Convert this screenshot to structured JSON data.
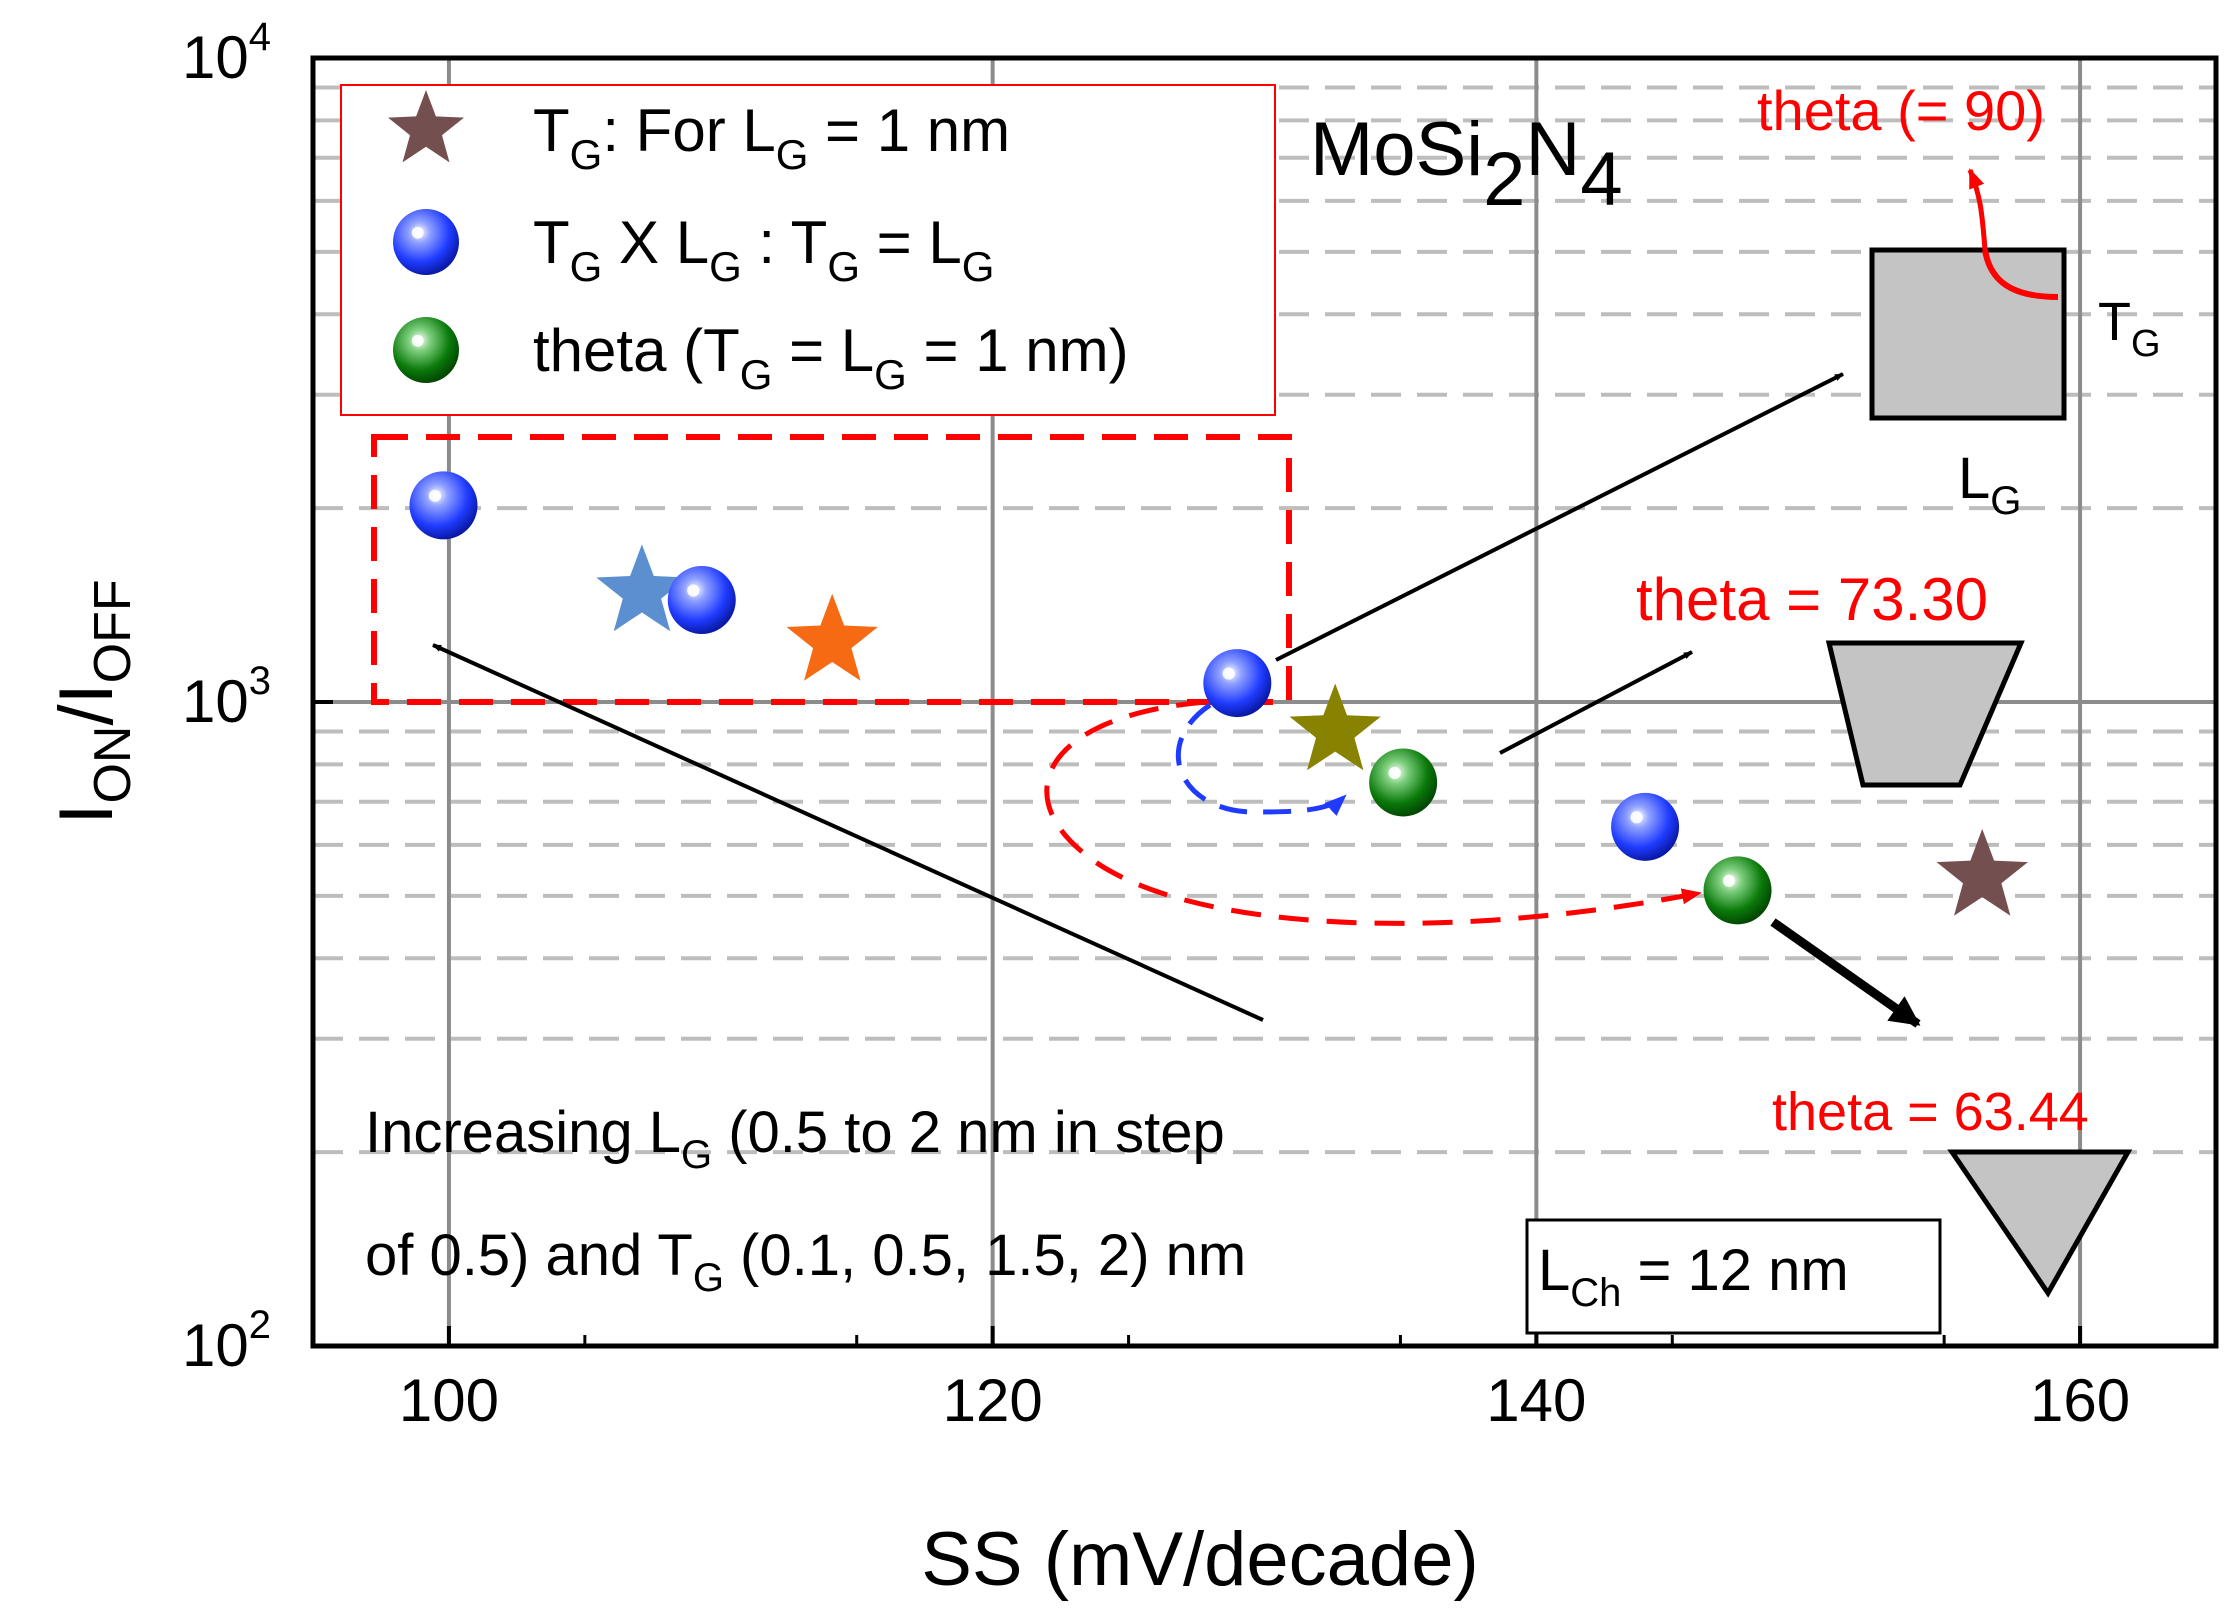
{
  "chart_data": {
    "type": "scatter",
    "xlabel": "SS (mV/decade)",
    "ylabel": {
      "base": "I",
      "sub1": "ON",
      "mid": "/I",
      "sub2": "OFF"
    },
    "xlim": [
      95,
      165
    ],
    "ylim": [
      100,
      10000
    ],
    "y_scale": "log",
    "x_ticks": [
      100,
      120,
      140,
      160
    ],
    "y_ticks": [
      {
        "value": 100,
        "base": "10",
        "exp": "2"
      },
      {
        "value": 1000,
        "base": "10",
        "exp": "3"
      },
      {
        "value": 10000,
        "base": "10",
        "exp": "4"
      }
    ],
    "grid": "major solid, minor dashed",
    "legend": {
      "position": "top-left",
      "entries": [
        {
          "marker": "star",
          "color": "#744f4f",
          "parts": [
            [
              "T",
              ""
            ],
            [
              "G",
              "sub"
            ],
            [
              ": For L",
              ""
            ],
            [
              "G",
              "sub"
            ],
            [
              " = 1 nm",
              ""
            ]
          ]
        },
        {
          "marker": "sphere",
          "color": "#1f3bff",
          "parts": [
            [
              "T",
              ""
            ],
            [
              "G",
              "sub"
            ],
            [
              " X L",
              ""
            ],
            [
              "G",
              "sub"
            ],
            [
              " : T",
              ""
            ],
            [
              "G",
              "sub"
            ],
            [
              " = L",
              ""
            ],
            [
              "G",
              "sub"
            ]
          ]
        },
        {
          "marker": "sphere",
          "color": "#0a7a0a",
          "parts": [
            [
              "theta (T",
              ""
            ],
            [
              "G",
              "sub"
            ],
            [
              " = L",
              ""
            ],
            [
              "G",
              "sub"
            ],
            [
              " = 1 nm)",
              ""
            ]
          ]
        }
      ]
    },
    "series": [
      {
        "marker": "star",
        "points": [
          {
            "x": 107.1,
            "y": 1480,
            "color": "#5b8fd0"
          },
          {
            "x": 114.1,
            "y": 1240,
            "color": "#f56a12"
          },
          {
            "x": 132.6,
            "y": 900,
            "color": "#878300"
          },
          {
            "x": 156.4,
            "y": 535,
            "color": "#744f4f"
          }
        ]
      },
      {
        "marker": "sphere",
        "color": "#1f3bff",
        "points": [
          {
            "x": 99.8,
            "y": 2020
          },
          {
            "x": 109.3,
            "y": 1440
          },
          {
            "x": 129.0,
            "y": 1070
          },
          {
            "x": 144.0,
            "y": 640
          }
        ]
      },
      {
        "marker": "sphere",
        "color": "#0a7a0a",
        "points": [
          {
            "x": 135.1,
            "y": 750
          },
          {
            "x": 147.4,
            "y": 510
          }
        ]
      }
    ],
    "annotations": {
      "material": {
        "base": "MoSi",
        "sub1": "2",
        "mid": "N",
        "sub2": "4"
      },
      "theta_90": "theta (= 90)",
      "theta_73": "theta = 73.30",
      "theta_63": "theta = 63.44",
      "tg_label": {
        "base": "T",
        "sub": "G"
      },
      "lg_label": {
        "base": "L",
        "sub": "G"
      },
      "lch_box": {
        "base": "L",
        "sub": "Ch",
        "rest": " = 12 nm"
      },
      "increasing_line1": {
        "pre": "Increasing L",
        "sub": "G",
        "post": " (0.5 to 2 nm in step"
      },
      "increasing_line2": {
        "pre": "of 0.5) and T",
        "sub": "G",
        "post": " (0.1, 0.5, 1.5, 2) nm"
      }
    },
    "colors": {
      "annotation_red": "#ff0000",
      "shape_fill": "#c4c4c4",
      "grid": "#8c8c8c",
      "dashed_grid": "#bdbdbd"
    }
  }
}
